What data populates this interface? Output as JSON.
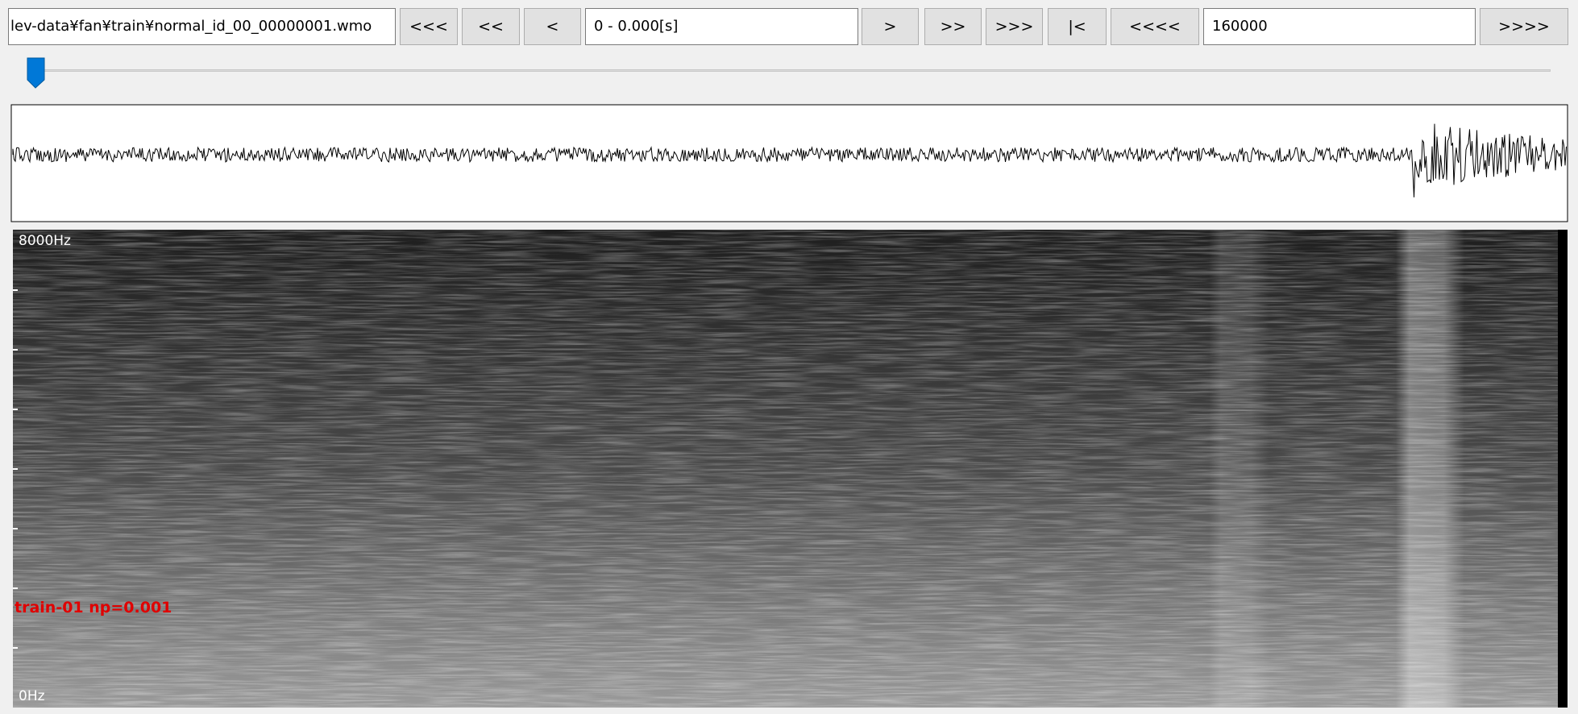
{
  "toolbar": {
    "file_path": "lev-data¥fan¥train¥normal_id_00_00000001.wmo",
    "back_buttons": [
      "<<<",
      "<<",
      "<"
    ],
    "time_range": "0 - 0.000[s]",
    "forward_buttons": [
      ">",
      ">>",
      ">>>",
      "|<",
      "<<<<"
    ],
    "sample_count": "160000",
    "end_button": ">>>>"
  },
  "spectrogram": {
    "top_label": "8000Hz",
    "bottom_label": "0Hz",
    "annotation": "train-01 np=0.001"
  }
}
